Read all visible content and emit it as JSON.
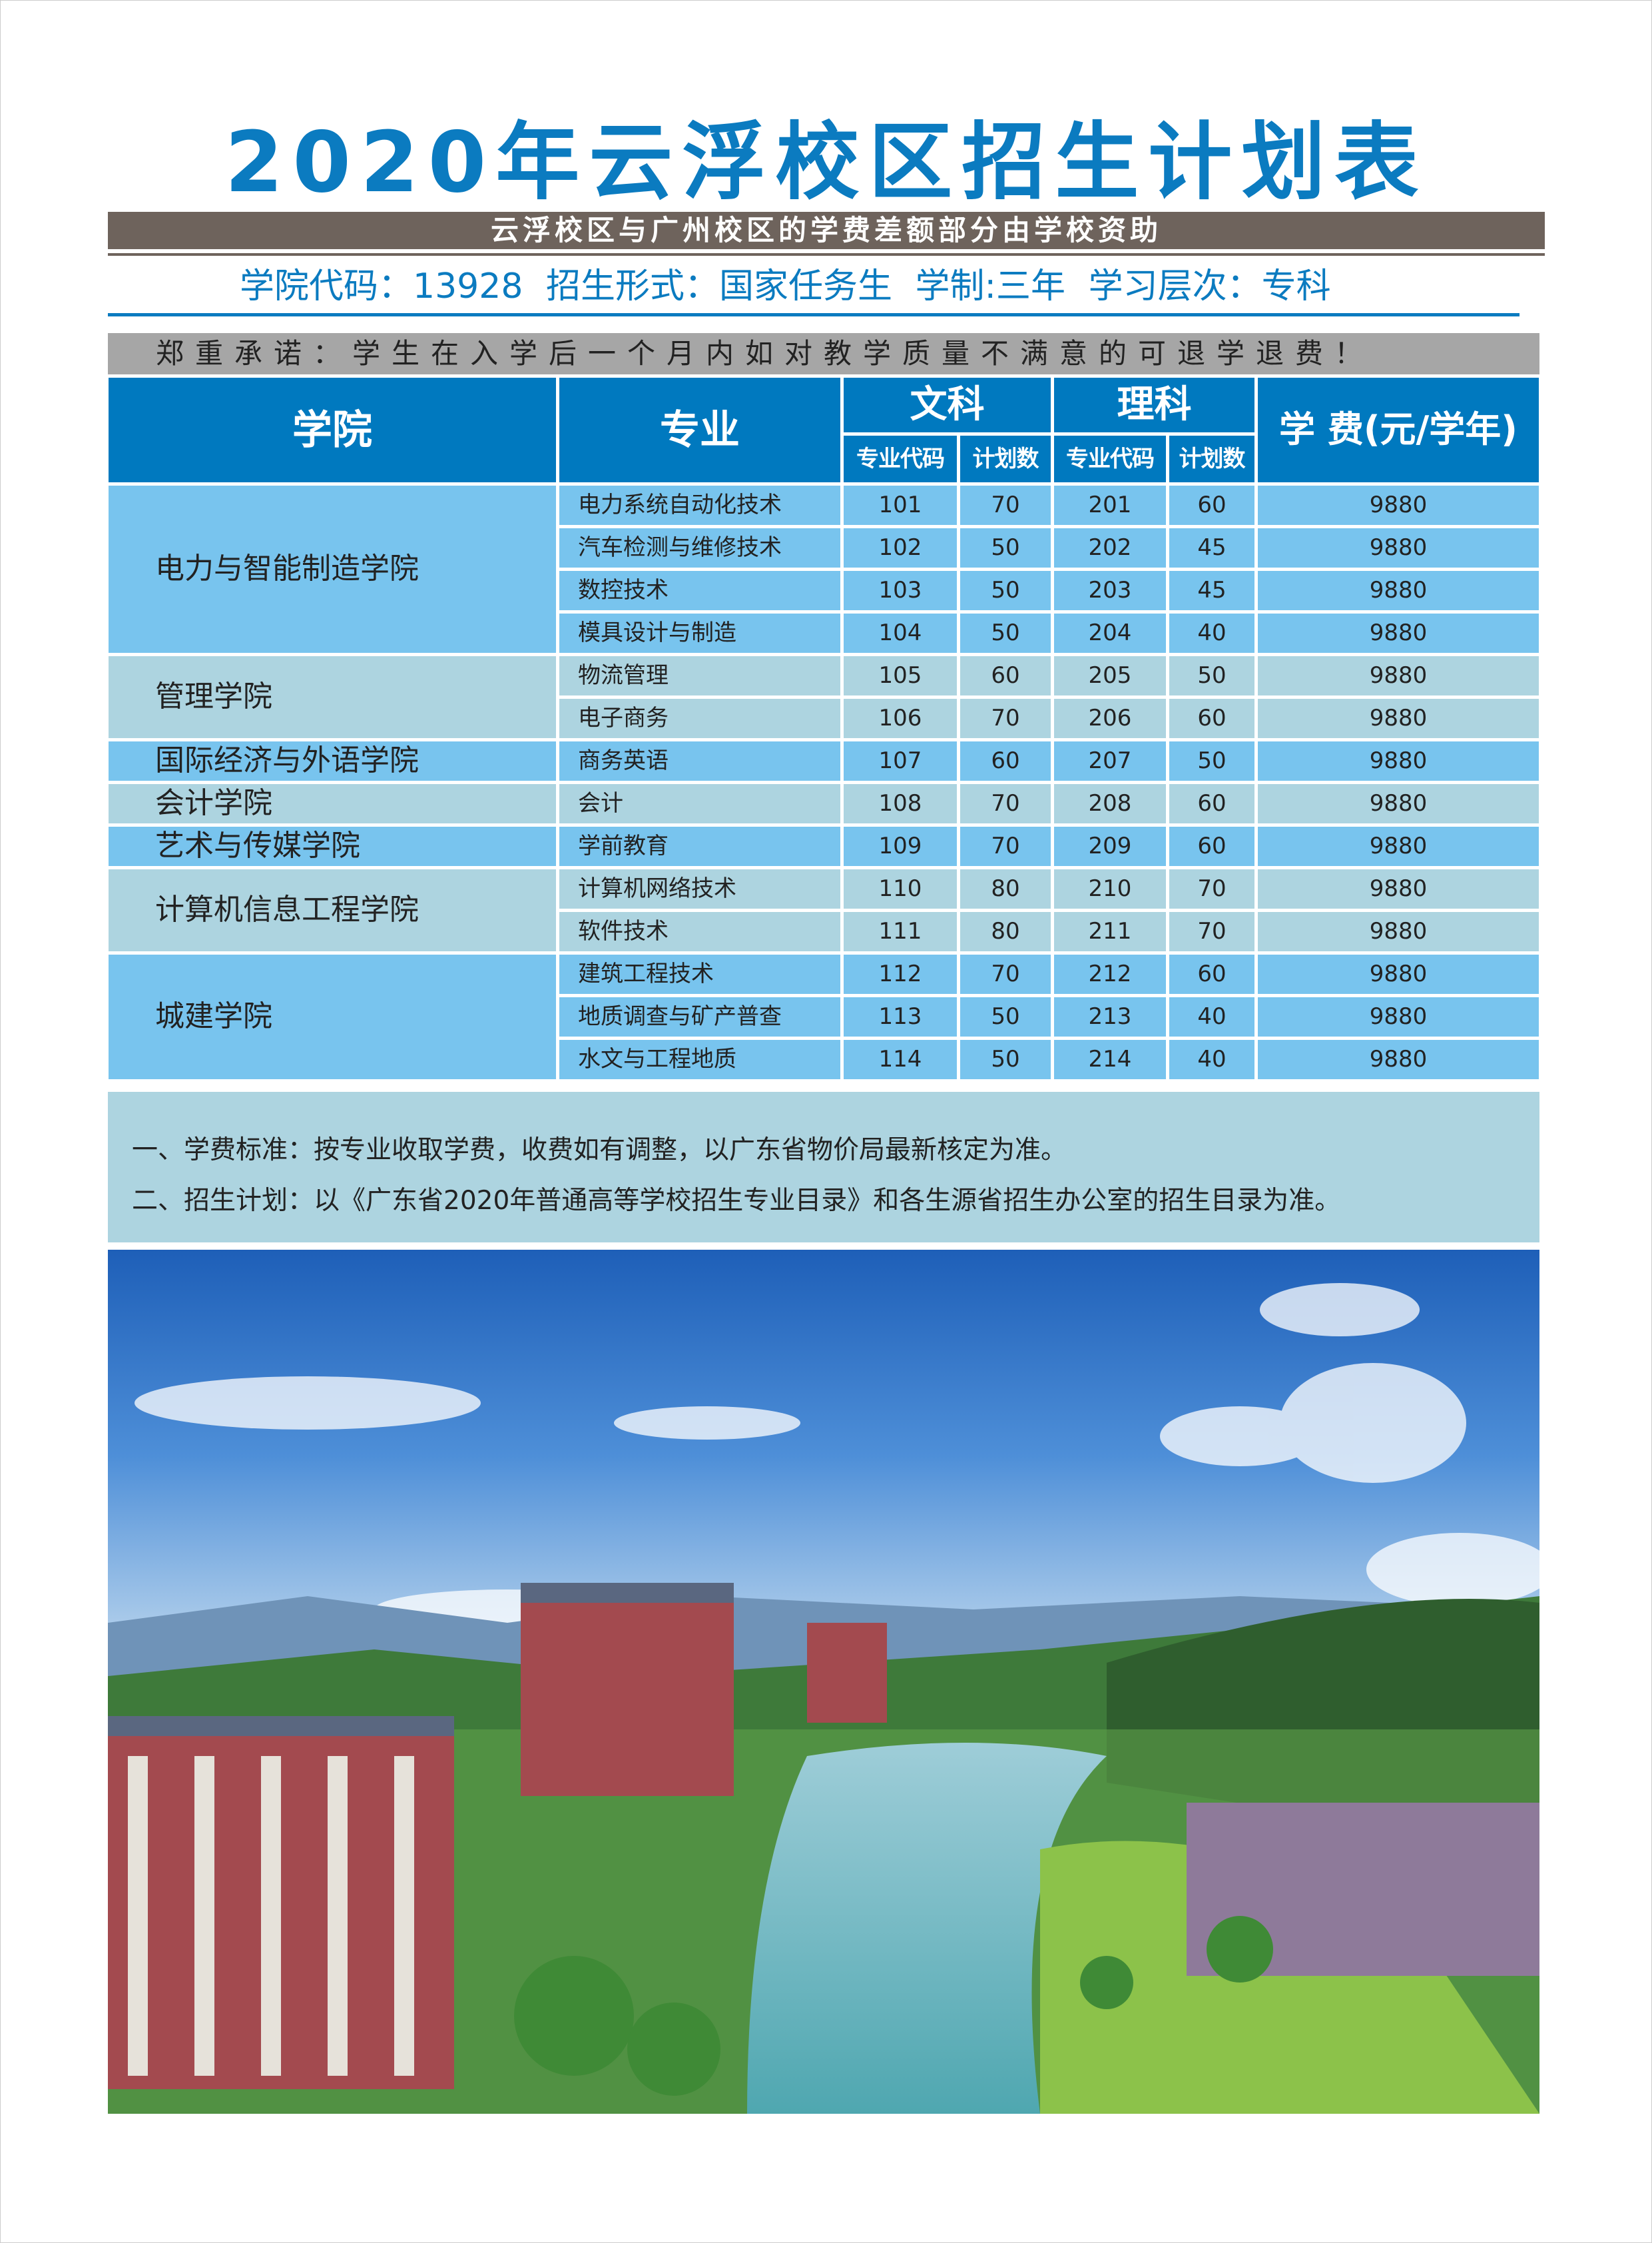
{
  "title": "2020年云浮校区招生计划表",
  "subsidy_banner": "云浮校区与广州校区的学费差额部分由学校资助",
  "info": {
    "college_code": "学院代码：13928",
    "enroll_form": "招生形式：国家任务生",
    "duration": "学制:三年",
    "level": "学习层次：专科"
  },
  "promise": "郑重承诺：学生在入学后一个月内如对教学质量不满意的可退学退费！",
  "table": {
    "headers": {
      "college": "学院",
      "major": "专业",
      "arts": "文科",
      "science": "理科",
      "code": "专业代码",
      "plan": "计划数",
      "fee": "学 费(元/学年)"
    },
    "groups": [
      {
        "college": "电力与智能制造学院",
        "rows": [
          {
            "major": "电力系统自动化技术",
            "arts_code": "101",
            "arts_plan": "70",
            "sci_code": "201",
            "sci_plan": "60",
            "fee": "9880"
          },
          {
            "major": "汽车检测与维修技术",
            "arts_code": "102",
            "arts_plan": "50",
            "sci_code": "202",
            "sci_plan": "45",
            "fee": "9880"
          },
          {
            "major": "数控技术",
            "arts_code": "103",
            "arts_plan": "50",
            "sci_code": "203",
            "sci_plan": "45",
            "fee": "9880"
          },
          {
            "major": "模具设计与制造",
            "arts_code": "104",
            "arts_plan": "50",
            "sci_code": "204",
            "sci_plan": "40",
            "fee": "9880"
          }
        ]
      },
      {
        "college": "管理学院",
        "rows": [
          {
            "major": "物流管理",
            "arts_code": "105",
            "arts_plan": "60",
            "sci_code": "205",
            "sci_plan": "50",
            "fee": "9880"
          },
          {
            "major": "电子商务",
            "arts_code": "106",
            "arts_plan": "70",
            "sci_code": "206",
            "sci_plan": "60",
            "fee": "9880"
          }
        ]
      },
      {
        "college": "国际经济与外语学院",
        "rows": [
          {
            "major": "商务英语",
            "arts_code": "107",
            "arts_plan": "60",
            "sci_code": "207",
            "sci_plan": "50",
            "fee": "9880"
          }
        ]
      },
      {
        "college": "会计学院",
        "rows": [
          {
            "major": "会计",
            "arts_code": "108",
            "arts_plan": "70",
            "sci_code": "208",
            "sci_plan": "60",
            "fee": "9880"
          }
        ]
      },
      {
        "college": "艺术与传媒学院",
        "rows": [
          {
            "major": "学前教育",
            "arts_code": "109",
            "arts_plan": "70",
            "sci_code": "209",
            "sci_plan": "60",
            "fee": "9880"
          }
        ]
      },
      {
        "college": "计算机信息工程学院",
        "rows": [
          {
            "major": "计算机网络技术",
            "arts_code": "110",
            "arts_plan": "80",
            "sci_code": "210",
            "sci_plan": "70",
            "fee": "9880"
          },
          {
            "major": "软件技术",
            "arts_code": "111",
            "arts_plan": "80",
            "sci_code": "211",
            "sci_plan": "70",
            "fee": "9880"
          }
        ]
      },
      {
        "college": "城建学院",
        "rows": [
          {
            "major": "建筑工程技术",
            "arts_code": "112",
            "arts_plan": "70",
            "sci_code": "212",
            "sci_plan": "60",
            "fee": "9880"
          },
          {
            "major": "地质调查与矿产普查",
            "arts_code": "113",
            "arts_plan": "50",
            "sci_code": "213",
            "sci_plan": "40",
            "fee": "9880"
          },
          {
            "major": "水文与工程地质",
            "arts_code": "114",
            "arts_plan": "50",
            "sci_code": "214",
            "sci_plan": "40",
            "fee": "9880"
          }
        ]
      }
    ]
  },
  "notes": [
    "一、学费标准：按专业收取学费，收费如有调整，以广东省物价局最新核定为准。",
    "二、招生计划：以《广东省2020年普通高等学校招生专业目录》和各生源省招生办公室的招生目录为准。"
  ],
  "colors": {
    "title": "#0B7BC0",
    "header": "#0079BF",
    "row_light_blue": "#78C4EE",
    "row_gray_blue": "#ADD4E0",
    "banner": "#6E635C"
  }
}
